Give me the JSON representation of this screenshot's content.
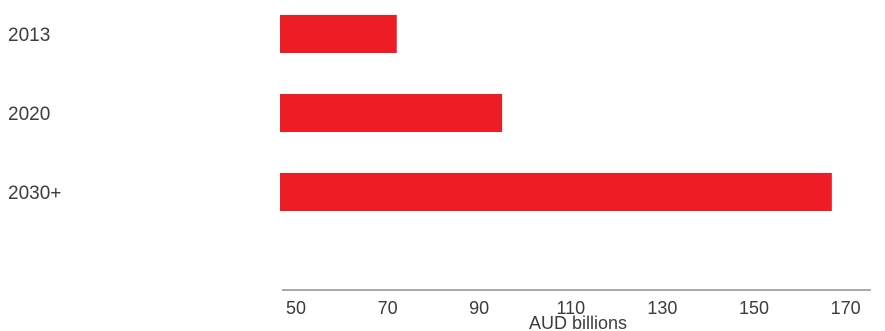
{
  "chart_data": {
    "type": "bar",
    "orientation": "horizontal",
    "categories": [
      "2013",
      "2020",
      "2030+"
    ],
    "values": [
      72,
      95,
      167
    ],
    "bar_color": "#ee1c25",
    "xlabel": "AUD billions",
    "xlim": [
      50,
      175
    ],
    "xticks": [
      50,
      70,
      90,
      110,
      130,
      150,
      170
    ],
    "grid": false
  }
}
